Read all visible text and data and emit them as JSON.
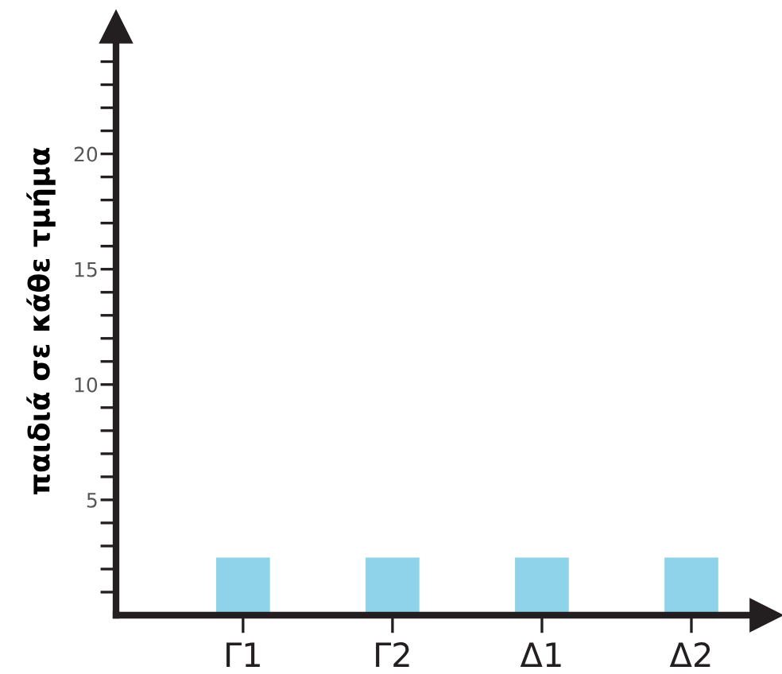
{
  "chart_data": {
    "type": "bar",
    "ylabel": "παιδιά σε κάθε τμήμα",
    "categories": [
      "Γ1",
      "Γ2",
      "Δ1",
      "Δ2"
    ],
    "values": [
      2.5,
      2.5,
      2.5,
      2.5
    ],
    "color": "#8fd3ea",
    "ylim": [
      0,
      25.5
    ],
    "yticks": [
      {
        "value": 1,
        "label": null
      },
      {
        "value": 2,
        "label": null
      },
      {
        "value": 3,
        "label": null
      },
      {
        "value": 4,
        "label": null
      },
      5,
      {
        "value": 6,
        "label": null
      },
      {
        "value": 7,
        "label": null
      },
      {
        "value": 8,
        "label": null
      },
      {
        "value": 9,
        "label": null
      },
      10,
      {
        "value": 11,
        "label": null
      },
      {
        "value": 12,
        "label": null
      },
      {
        "value": 13,
        "label": null
      },
      {
        "value": 14,
        "label": null
      },
      15,
      {
        "value": 16,
        "label": null
      },
      {
        "value": 17,
        "label": null
      },
      {
        "value": 18,
        "label": null
      },
      {
        "value": 19,
        "label": null
      },
      20,
      {
        "value": 21,
        "label": null
      },
      {
        "value": 22,
        "label": null
      },
      {
        "value": 23,
        "label": null
      },
      {
        "value": 24,
        "label": null
      }
    ],
    "grid": false,
    "legend": false
  }
}
